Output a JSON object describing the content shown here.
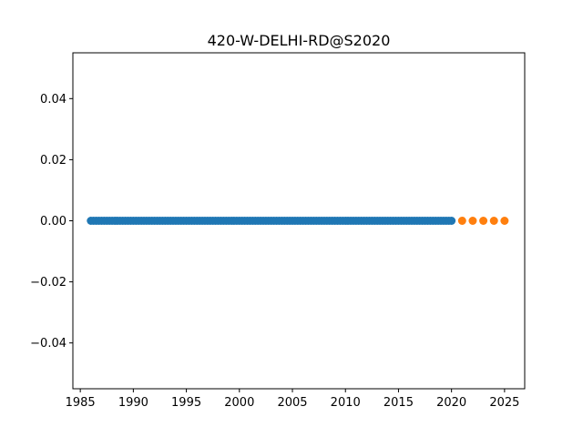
{
  "chart_data": {
    "type": "scatter",
    "title": "420-W-DELHI-RD@S2020",
    "xlabel": "",
    "ylabel": "",
    "xlim": [
      1984.3,
      2026.9
    ],
    "ylim": [
      -0.055,
      0.055
    ],
    "grid": false,
    "x_ticks": [
      1985,
      1990,
      1995,
      2000,
      2005,
      2010,
      2015,
      2020,
      2025
    ],
    "x_tick_labels": [
      "1985",
      "1990",
      "1995",
      "2000",
      "2005",
      "2010",
      "2015",
      "2020",
      "2025"
    ],
    "y_ticks": [
      -0.04,
      -0.02,
      0.0,
      0.02,
      0.04
    ],
    "y_tick_labels": [
      "−0.04",
      "−0.02",
      "0.00",
      "0.02",
      "0.04"
    ],
    "series": [
      {
        "color": "#1f77b4",
        "x_start": 1986.0,
        "x_end": 2020.0,
        "x_step": 0.25,
        "y": 0.0
      },
      {
        "color": "#ff7f0e",
        "x": [
          2021,
          2022,
          2023,
          2024,
          2025
        ],
        "y": [
          0,
          0,
          0,
          0,
          0
        ]
      }
    ]
  }
}
